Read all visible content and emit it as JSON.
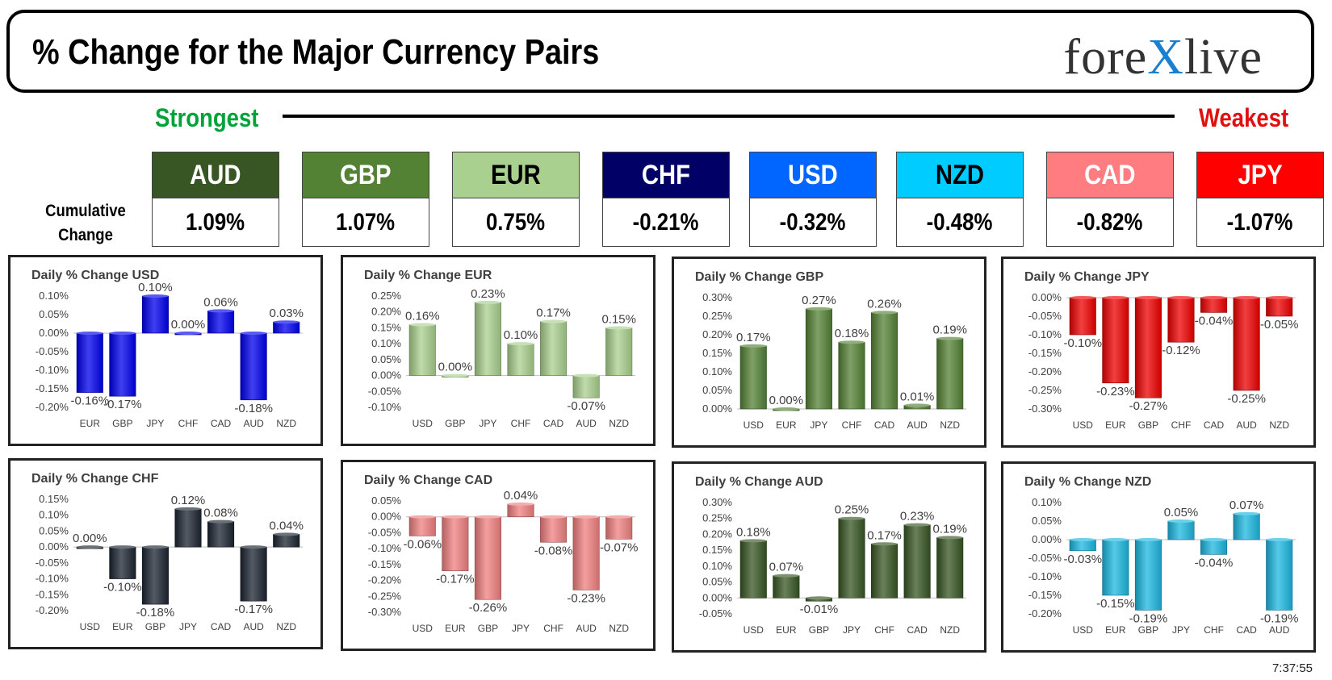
{
  "header": {
    "title": "% Change for the Major Currency Pairs",
    "logo_left": "fore",
    "logo_x": "X",
    "logo_right": "live"
  },
  "scale": {
    "strongest": "Strongest",
    "weakest": "Weakest"
  },
  "cumulative_label_line1": "Cumulative",
  "cumulative_label_line2": "Change",
  "currencies": [
    {
      "name": "AUD",
      "change": "1.09%",
      "bg": "#375623",
      "fg": "#ffffff"
    },
    {
      "name": "GBP",
      "change": "1.07%",
      "bg": "#548235",
      "fg": "#ffffff"
    },
    {
      "name": "EUR",
      "change": "0.75%",
      "bg": "#a9d08e",
      "fg": "#000000"
    },
    {
      "name": "CHF",
      "change": "-0.21%",
      "bg": "#000066",
      "fg": "#ffffff"
    },
    {
      "name": "USD",
      "change": "-0.32%",
      "bg": "#0066ff",
      "fg": "#ffffff"
    },
    {
      "name": "NZD",
      "change": "-0.48%",
      "bg": "#00ccff",
      "fg": "#000000"
    },
    {
      "name": "CAD",
      "change": "-0.82%",
      "bg": "#ff7c80",
      "fg": "#ffffff"
    },
    {
      "name": "JPY",
      "change": "-1.07%",
      "bg": "#ff0000",
      "fg": "#ffffff"
    }
  ],
  "timestamp": "7:37:55",
  "chart_data": [
    {
      "type": "bar",
      "title": "Daily % Change USD",
      "color": "#0000ee",
      "categories": [
        "EUR",
        "GBP",
        "JPY",
        "CHF",
        "CAD",
        "AUD",
        "NZD"
      ],
      "values": [
        -0.16,
        -0.17,
        0.1,
        0.0,
        0.06,
        -0.18,
        0.03
      ],
      "ylim": [
        -0.2,
        0.1
      ],
      "step": 0.05
    },
    {
      "type": "bar",
      "title": "Daily % Change EUR",
      "color": "#a9d08e",
      "categories": [
        "USD",
        "GBP",
        "JPY",
        "CHF",
        "CAD",
        "AUD",
        "NZD"
      ],
      "values": [
        0.16,
        0.0,
        0.23,
        0.1,
        0.17,
        -0.07,
        0.15
      ],
      "ylim": [
        -0.1,
        0.25
      ],
      "step": 0.05
    },
    {
      "type": "bar",
      "title": "Daily % Change GBP",
      "color": "#548235",
      "categories": [
        "USD",
        "EUR",
        "JPY",
        "CHF",
        "CAD",
        "AUD",
        "NZD"
      ],
      "values": [
        0.17,
        0.0,
        0.27,
        0.18,
        0.26,
        0.01,
        0.19
      ],
      "ylim": [
        0.0,
        0.3
      ],
      "step": 0.05
    },
    {
      "type": "bar",
      "title": "Daily % Change JPY",
      "color": "#ee0000",
      "categories": [
        "USD",
        "EUR",
        "GBP",
        "CHF",
        "CAD",
        "AUD",
        "NZD"
      ],
      "values": [
        -0.1,
        -0.23,
        -0.27,
        -0.12,
        -0.04,
        -0.25,
        -0.05
      ],
      "ylim": [
        -0.3,
        0.0
      ],
      "step": 0.05
    },
    {
      "type": "bar",
      "title": "Daily % Change CHF",
      "color": "#1c2430",
      "categories": [
        "USD",
        "EUR",
        "GBP",
        "JPY",
        "CAD",
        "AUD",
        "NZD"
      ],
      "values": [
        0.0,
        -0.1,
        -0.18,
        0.12,
        0.08,
        -0.17,
        0.04
      ],
      "ylim": [
        -0.2,
        0.15
      ],
      "step": 0.05
    },
    {
      "type": "bar",
      "title": "Daily % Change CAD",
      "color": "#f08080",
      "categories": [
        "USD",
        "EUR",
        "GBP",
        "JPY",
        "CHF",
        "AUD",
        "NZD"
      ],
      "values": [
        -0.06,
        -0.17,
        -0.26,
        0.04,
        -0.08,
        -0.23,
        -0.07
      ],
      "ylim": [
        -0.3,
        0.05
      ],
      "step": 0.05
    },
    {
      "type": "bar",
      "title": "Daily % Change AUD",
      "color": "#375623",
      "categories": [
        "USD",
        "EUR",
        "GBP",
        "JPY",
        "CHF",
        "CAD",
        "NZD"
      ],
      "values": [
        0.18,
        0.07,
        -0.01,
        0.25,
        0.17,
        0.23,
        0.19
      ],
      "ylim": [
        -0.05,
        0.3
      ],
      "step": 0.05
    },
    {
      "type": "bar",
      "title": "Daily % Change NZD",
      "color": "#1cb8e0",
      "categories": [
        "USD",
        "EUR",
        "GBP",
        "JPY",
        "CHF",
        "CAD",
        "AUD"
      ],
      "values": [
        -0.03,
        -0.15,
        -0.19,
        0.05,
        -0.04,
        0.07,
        -0.19
      ],
      "ylim": [
        -0.2,
        0.1
      ],
      "step": 0.05
    }
  ]
}
